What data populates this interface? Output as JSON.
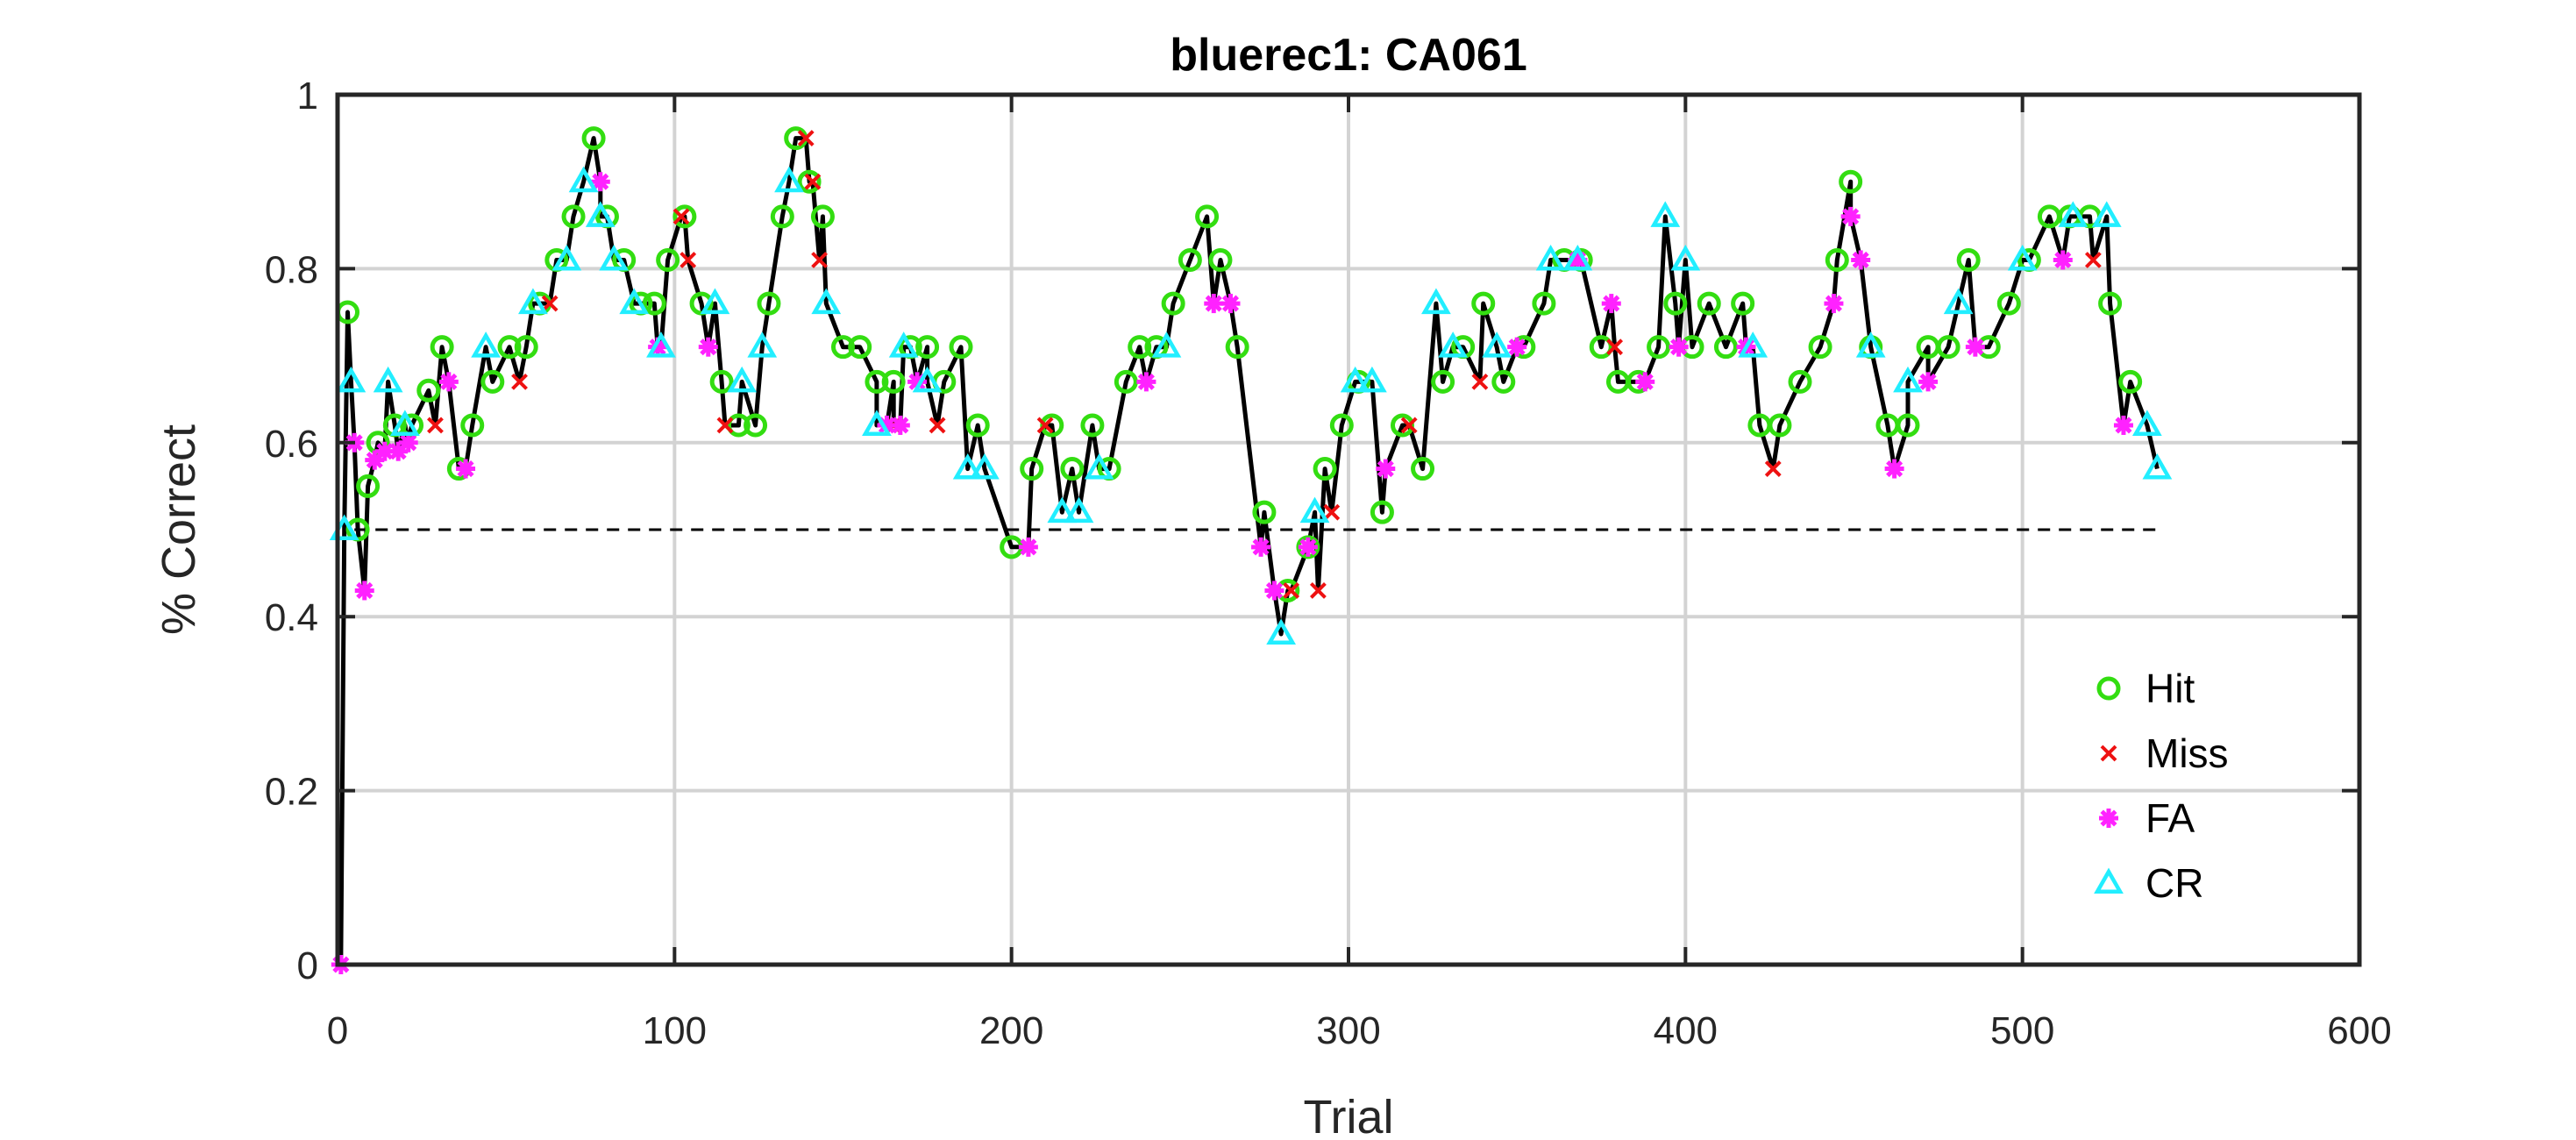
{
  "chart_data": {
    "type": "line",
    "title": "bluerec1: CA061",
    "xlabel": "Trial",
    "ylabel": "% Correct",
    "xlim": [
      0,
      600
    ],
    "ylim": [
      0,
      1
    ],
    "xticks": [
      0,
      100,
      200,
      300,
      400,
      500,
      600
    ],
    "yticks": [
      0,
      0.2,
      0.4,
      0.6,
      0.8,
      1
    ],
    "grid": true,
    "legend_position": "bottom-right",
    "chance_level": {
      "value": 0.5,
      "x_range": [
        5,
        540
      ],
      "style": "dashed"
    },
    "colors": {
      "line": "#000000",
      "grid": "#d3d3d3",
      "Hit": "#33dd11",
      "Miss": "#ee1111",
      "FA": "#ff22ff",
      "CR": "#22eeff"
    },
    "legend": [
      {
        "label": "Hit",
        "marker": "circle",
        "color": "#33dd11"
      },
      {
        "label": "Miss",
        "marker": "x",
        "color": "#ee1111"
      },
      {
        "label": "FA",
        "marker": "asterisk",
        "color": "#ff22ff"
      },
      {
        "label": "CR",
        "marker": "triangle",
        "color": "#22eeff"
      }
    ],
    "series": [
      {
        "name": "Hit",
        "x": [
          3,
          6,
          9,
          12,
          17,
          22,
          27,
          31,
          36,
          40,
          46,
          51,
          56,
          60,
          65,
          70,
          76,
          80,
          85,
          90,
          94,
          98,
          103,
          108,
          114,
          119,
          124,
          128,
          132,
          136,
          140,
          144,
          150,
          155,
          160,
          165,
          170,
          175,
          180,
          185,
          190,
          200,
          206,
          212,
          218,
          224,
          229,
          234,
          238,
          243,
          248,
          253,
          258,
          262,
          267,
          275,
          282,
          288,
          293,
          298,
          303,
          310,
          316,
          322,
          328,
          334,
          340,
          346,
          352,
          358,
          364,
          369,
          375,
          380,
          386,
          392,
          397,
          402,
          407,
          412,
          417,
          422,
          428,
          434,
          440,
          445,
          449,
          455,
          460,
          466,
          472,
          478,
          484,
          490,
          496,
          502,
          508,
          514,
          520,
          526,
          532
        ],
        "y": [
          0.75,
          0.5,
          0.55,
          0.6,
          0.62,
          0.62,
          0.66,
          0.71,
          0.57,
          0.62,
          0.67,
          0.71,
          0.71,
          0.76,
          0.81,
          0.86,
          0.95,
          0.86,
          0.81,
          0.76,
          0.76,
          0.81,
          0.86,
          0.76,
          0.67,
          0.62,
          0.62,
          0.76,
          0.86,
          0.95,
          0.9,
          0.86,
          0.71,
          0.71,
          0.67,
          0.67,
          0.71,
          0.71,
          0.67,
          0.71,
          0.62,
          0.48,
          0.57,
          0.62,
          0.57,
          0.62,
          0.57,
          0.67,
          0.71,
          0.71,
          0.76,
          0.81,
          0.86,
          0.81,
          0.71,
          0.52,
          0.43,
          0.48,
          0.57,
          0.62,
          0.67,
          0.52,
          0.62,
          0.57,
          0.67,
          0.71,
          0.76,
          0.67,
          0.71,
          0.76,
          0.81,
          0.81,
          0.71,
          0.67,
          0.67,
          0.71,
          0.76,
          0.71,
          0.76,
          0.71,
          0.76,
          0.62,
          0.62,
          0.67,
          0.71,
          0.81,
          0.9,
          0.71,
          0.62,
          0.62,
          0.71,
          0.71,
          0.81,
          0.71,
          0.76,
          0.81,
          0.86,
          0.86,
          0.86,
          0.76,
          0.67
        ]
      },
      {
        "name": "Miss",
        "x": [
          29,
          54,
          63,
          102,
          104,
          115,
          139,
          141,
          143,
          165,
          178,
          210,
          283,
          291,
          295,
          318,
          339,
          379,
          426,
          521
        ],
        "y": [
          0.62,
          0.67,
          0.76,
          0.86,
          0.81,
          0.62,
          0.95,
          0.9,
          0.81,
          0.62,
          0.62,
          0.62,
          0.43,
          0.43,
          0.52,
          0.62,
          0.67,
          0.71,
          0.57,
          0.81
        ]
      },
      {
        "name": "FA",
        "x": [
          1,
          5,
          8,
          11,
          14,
          18,
          21,
          33,
          38,
          78,
          95,
          110,
          163,
          167,
          172,
          205,
          240,
          260,
          265,
          274,
          278,
          288,
          311,
          350,
          368,
          378,
          388,
          398,
          418,
          444,
          449,
          452,
          462,
          472,
          486,
          512,
          530
        ],
        "y": [
          0,
          0.6,
          0.43,
          0.58,
          0.59,
          0.59,
          0.6,
          0.67,
          0.57,
          0.9,
          0.71,
          0.71,
          0.62,
          0.62,
          0.67,
          0.48,
          0.67,
          0.76,
          0.76,
          0.48,
          0.43,
          0.48,
          0.57,
          0.71,
          0.81,
          0.76,
          0.67,
          0.71,
          0.71,
          0.76,
          0.86,
          0.81,
          0.57,
          0.67,
          0.71,
          0.81,
          0.62
        ]
      },
      {
        "name": "CR",
        "x": [
          2,
          4,
          15,
          20,
          44,
          58,
          68,
          73,
          78,
          82,
          88,
          96,
          112,
          120,
          126,
          134,
          145,
          160,
          168,
          175,
          187,
          192,
          215,
          220,
          226,
          246,
          280,
          290,
          302,
          307,
          326,
          331,
          344,
          360,
          368,
          394,
          400,
          420,
          455,
          466,
          481,
          500,
          515,
          525,
          537,
          540
        ],
        "y": [
          0.5,
          0.67,
          0.67,
          0.62,
          0.71,
          0.76,
          0.81,
          0.9,
          0.86,
          0.81,
          0.76,
          0.71,
          0.76,
          0.67,
          0.71,
          0.9,
          0.76,
          0.62,
          0.71,
          0.67,
          0.57,
          0.57,
          0.52,
          0.52,
          0.57,
          0.71,
          0.38,
          0.52,
          0.67,
          0.67,
          0.76,
          0.71,
          0.71,
          0.81,
          0.81,
          0.86,
          0.81,
          0.71,
          0.71,
          0.67,
          0.76,
          0.81,
          0.86,
          0.86,
          0.62,
          0.57
        ]
      }
    ]
  }
}
